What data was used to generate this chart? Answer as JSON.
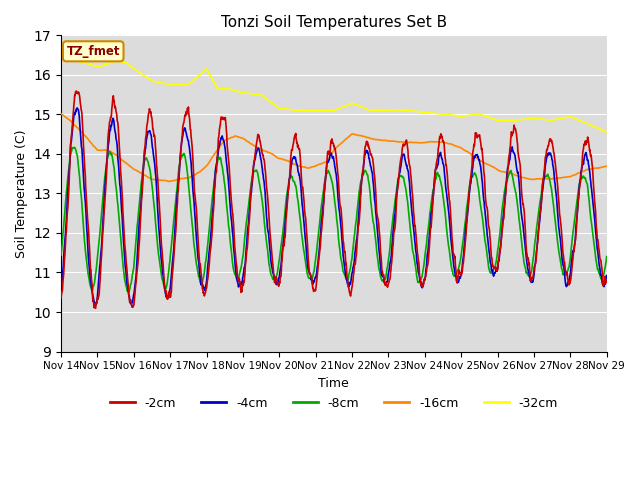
{
  "title": "Tonzi Soil Temperatures Set B",
  "ylabel": "Soil Temperature (C)",
  "xlabel": "Time",
  "ylim": [
    9.0,
    17.0
  ],
  "yticks": [
    9.0,
    10.0,
    11.0,
    12.0,
    13.0,
    14.0,
    15.0,
    16.0,
    17.0
  ],
  "xtick_labels": [
    "Nov 14",
    "Nov 15",
    "Nov 16",
    "Nov 17",
    "Nov 18",
    "Nov 19",
    "Nov 20",
    "Nov 21",
    "Nov 22",
    "Nov 23",
    "Nov 24",
    "Nov 25",
    "Nov 26",
    "Nov 27",
    "Nov 28",
    "Nov 29"
  ],
  "legend_label": "TZ_fmet",
  "series_labels": [
    "-2cm",
    "-4cm",
    "-8cm",
    "-16cm",
    "-32cm"
  ],
  "series_colors": [
    "#cc0000",
    "#0000cc",
    "#00aa00",
    "#ff8800",
    "#ffff00"
  ],
  "bg_color": "#dcdcdc",
  "fig_bg": "#ffffff",
  "line_width": 1.2
}
